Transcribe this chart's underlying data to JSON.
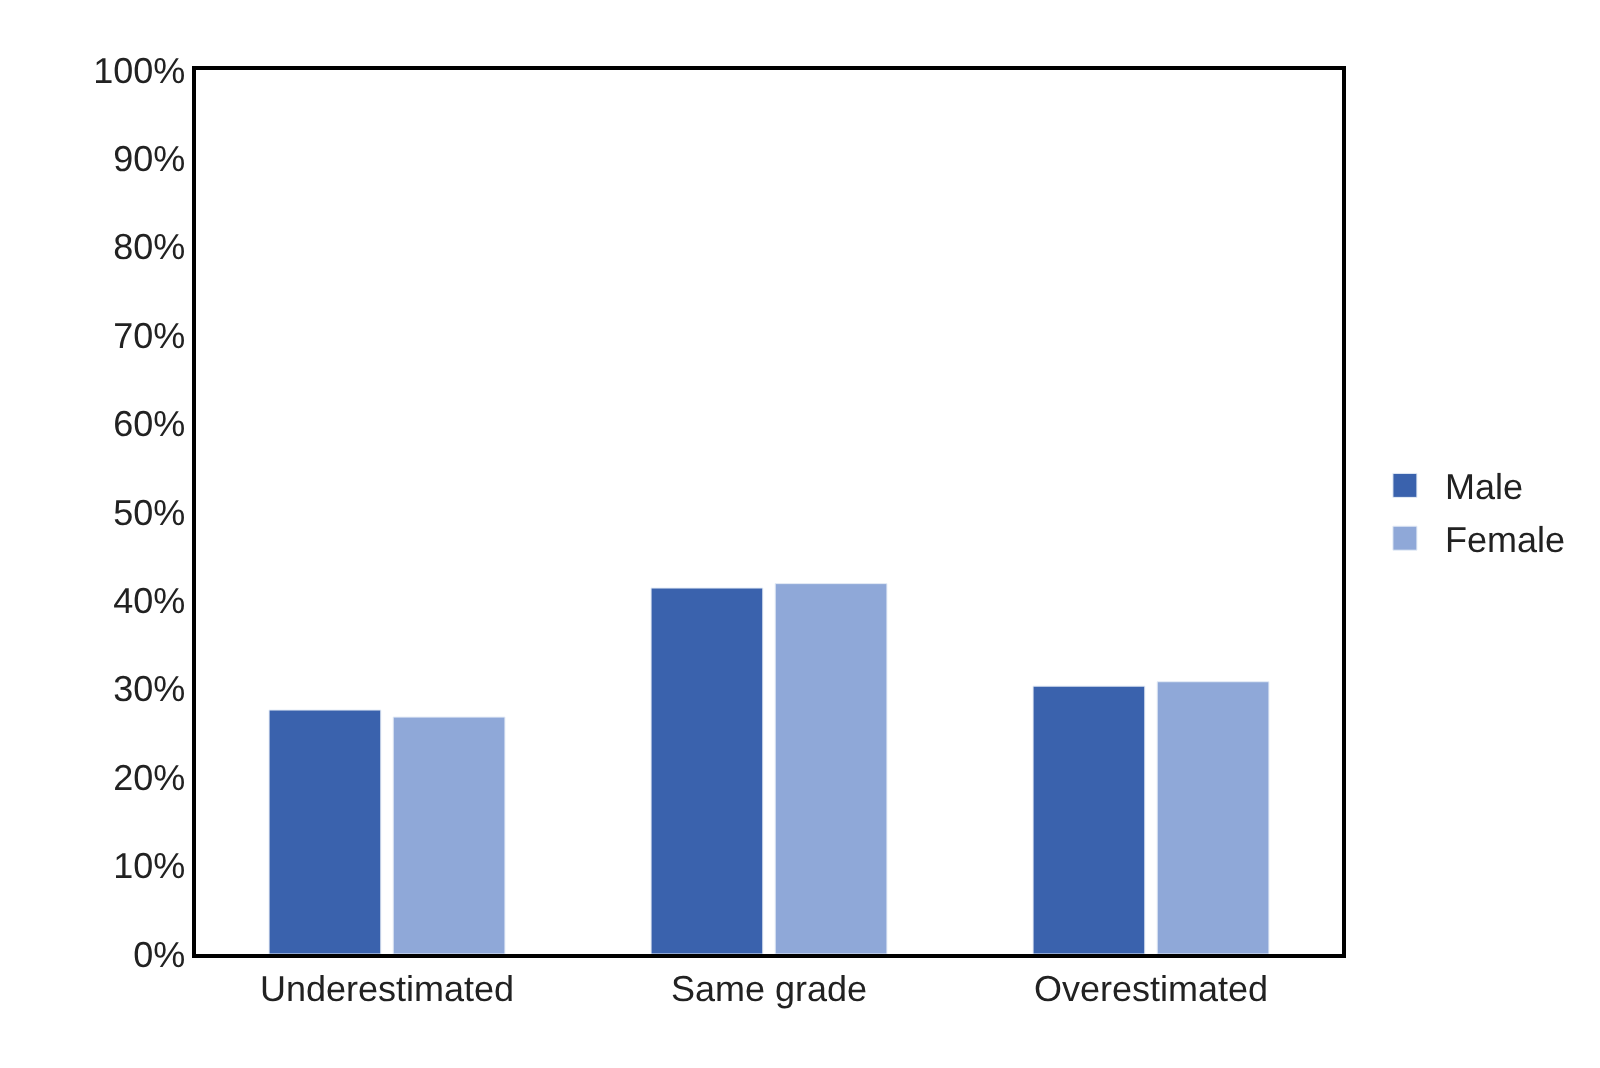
{
  "chart_data": {
    "type": "bar",
    "categories": [
      "Underestimated",
      "Same grade",
      "Overestimated"
    ],
    "series": [
      {
        "name": "Male",
        "color": "#3a62ad",
        "values": [
          27.6,
          41.4,
          30.3
        ]
      },
      {
        "name": "Female",
        "color": "#8fa8d8",
        "values": [
          26.8,
          41.9,
          30.8
        ]
      }
    ],
    "ylim": [
      0,
      100
    ],
    "yticks": [
      {
        "value": 0,
        "label": "0%"
      },
      {
        "value": 10,
        "label": "10%"
      },
      {
        "value": 20,
        "label": "20%"
      },
      {
        "value": 30,
        "label": "30%"
      },
      {
        "value": 40,
        "label": "40%"
      },
      {
        "value": 50,
        "label": "50%"
      },
      {
        "value": 60,
        "label": "60%"
      },
      {
        "value": 70,
        "label": "70%"
      },
      {
        "value": 80,
        "label": "80%"
      },
      {
        "value": 90,
        "label": "90%"
      },
      {
        "value": 100,
        "label": "100%"
      }
    ],
    "grid": false,
    "legend": "right"
  }
}
